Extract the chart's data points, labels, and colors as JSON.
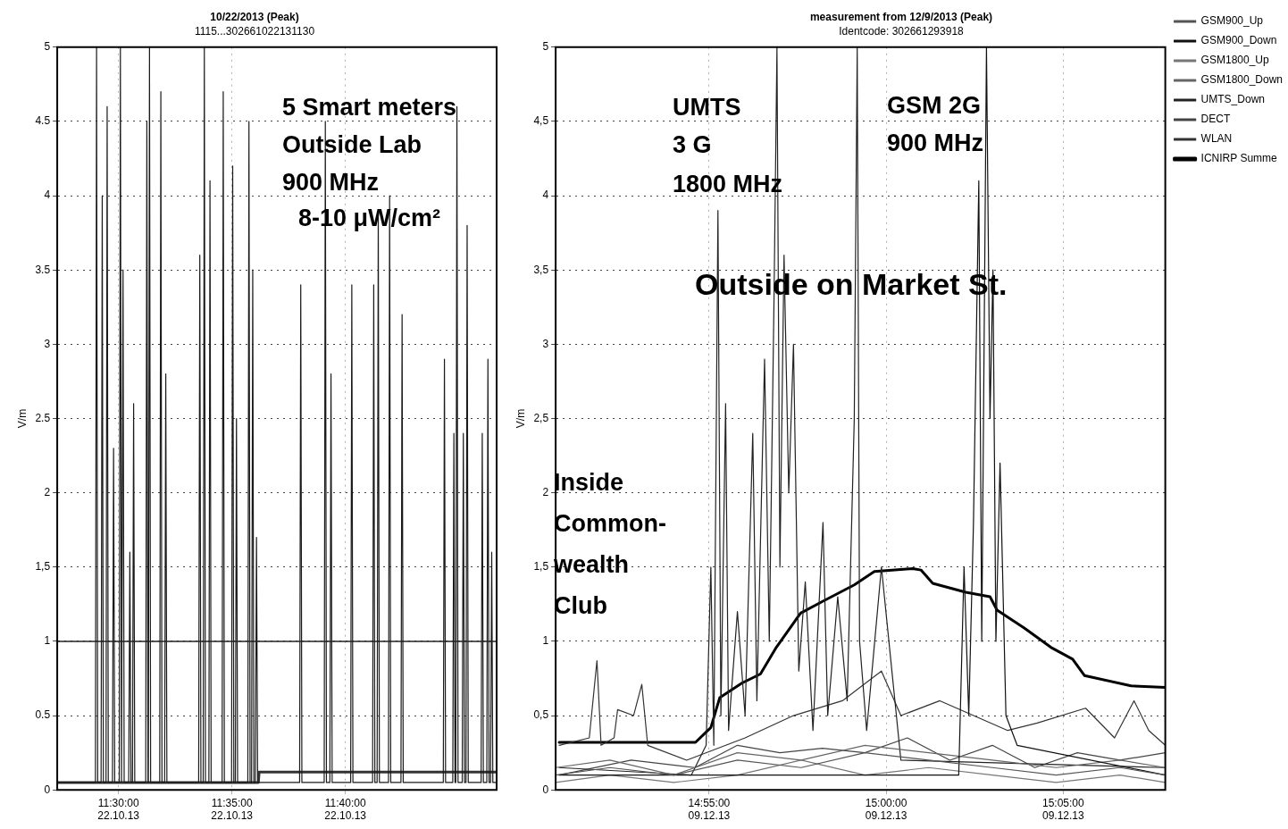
{
  "chart_data": [
    {
      "type": "line",
      "title": "10/22/2013 (Peak)",
      "subtitle": "1115...302661022131130",
      "ylabel": "V/m",
      "marker": "none",
      "grid": true,
      "xlim": [
        "2013-10-22T11:27:18",
        "2013-10-22T11:46:40"
      ],
      "xticks": [
        {
          "value": "2013-10-22T11:30:00",
          "label": "11:30:00 22.10.13"
        },
        {
          "value": "2013-10-22T11:35:00",
          "label": "11:35:00 22.10.13"
        },
        {
          "value": "2013-10-22T11:40:00",
          "label": "11:40:00 22.10.13"
        }
      ],
      "ylim": [
        0,
        5
      ],
      "yticks": [
        0,
        0.5,
        1,
        {
          "value": 1.5,
          "label": "1,5"
        },
        2,
        2.5,
        3,
        3.5,
        4,
        4.5,
        5
      ],
      "ref_lines": [
        {
          "axis": "y",
          "value": 1,
          "color": "#222222"
        }
      ],
      "annotations": [
        "5 Smart meters",
        "Outside Lab",
        "900 MHz",
        "8-10 μW/cm²"
      ],
      "series": [
        {
          "color": "#1a1a1a",
          "x": [
            "2013-10-22T11:27:18",
            "2013-10-22T11:28:59",
            "2013-10-22T11:29:02",
            "2013-10-22T11:29:05",
            "2013-10-22T11:29:14",
            "2013-10-22T11:29:17",
            "2013-10-22T11:29:20",
            "2013-10-22T11:29:27",
            "2013-10-22T11:29:30",
            "2013-10-22T11:29:33",
            "2013-10-22T11:29:44",
            "2013-10-22T11:29:47",
            "2013-10-22T11:29:50",
            "2013-10-22T11:30:02",
            "2013-10-22T11:30:05",
            "2013-10-22T11:30:08",
            "2013-10-22T11:30:09",
            "2013-10-22T11:30:12",
            "2013-10-22T11:30:15",
            "2013-10-22T11:30:27",
            "2013-10-22T11:30:30",
            "2013-10-22T11:30:33",
            "2013-10-22T11:30:37",
            "2013-10-22T11:30:40",
            "2013-10-22T11:30:43",
            "2013-10-22T11:31:12",
            "2013-10-22T11:31:15",
            "2013-10-22T11:31:18",
            "2013-10-22T11:31:19",
            "2013-10-22T11:31:22",
            "2013-10-22T11:31:25",
            "2013-10-22T11:31:49",
            "2013-10-22T11:31:52",
            "2013-10-22T11:31:55",
            "2013-10-22T11:32:02",
            "2013-10-22T11:32:05",
            "2013-10-22T11:32:08",
            "2013-10-22T11:33:32",
            "2013-10-22T11:33:35",
            "2013-10-22T11:33:38",
            "2013-10-22T11:33:44",
            "2013-10-22T11:33:47",
            "2013-10-22T11:33:50",
            "2013-10-22T11:33:59",
            "2013-10-22T11:34:02",
            "2013-10-22T11:34:05",
            "2013-10-22T11:34:34",
            "2013-10-22T11:34:37",
            "2013-10-22T11:34:40",
            "2013-10-22T11:34:59",
            "2013-10-22T11:35:02",
            "2013-10-22T11:35:05",
            "2013-10-22T11:35:09",
            "2013-10-22T11:35:12",
            "2013-10-22T11:35:15",
            "2013-10-22T11:35:42",
            "2013-10-22T11:35:45",
            "2013-10-22T11:35:48",
            "2013-10-22T11:35:52",
            "2013-10-22T11:35:55",
            "2013-10-22T11:35:58",
            "2013-10-22T11:36:02",
            "2013-10-22T11:36:05",
            "2013-10-22T11:36:08",
            "2013-10-22T11:37:59",
            "2013-10-22T11:38:02",
            "2013-10-22T11:38:05",
            "2013-10-22T11:39:04",
            "2013-10-22T11:39:07",
            "2013-10-22T11:39:10",
            "2013-10-22T11:39:19",
            "2013-10-22T11:39:22",
            "2013-10-22T11:39:25",
            "2013-10-22T11:40:14",
            "2013-10-22T11:40:17",
            "2013-10-22T11:40:20",
            "2013-10-22T11:41:12",
            "2013-10-22T11:41:15",
            "2013-10-22T11:41:18",
            "2013-10-22T11:41:24",
            "2013-10-22T11:41:27",
            "2013-10-22T11:41:30",
            "2013-10-22T11:41:54",
            "2013-10-22T11:41:57",
            "2013-10-22T11:42:00",
            "2013-10-22T11:42:27",
            "2013-10-22T11:42:30",
            "2013-10-22T11:42:33",
            "2013-10-22T11:44:19",
            "2013-10-22T11:44:22",
            "2013-10-22T11:44:25",
            "2013-10-22T11:44:44",
            "2013-10-22T11:44:47",
            "2013-10-22T11:44:50",
            "2013-10-22T11:44:52",
            "2013-10-22T11:44:55",
            "2013-10-22T11:44:58",
            "2013-10-22T11:45:09",
            "2013-10-22T11:45:12",
            "2013-10-22T11:45:15",
            "2013-10-22T11:45:19",
            "2013-10-22T11:45:22",
            "2013-10-22T11:45:25",
            "2013-10-22T11:45:59",
            "2013-10-22T11:46:02",
            "2013-10-22T11:46:05",
            "2013-10-22T11:46:14",
            "2013-10-22T11:46:17",
            "2013-10-22T11:46:20",
            "2013-10-22T11:46:24",
            "2013-10-22T11:46:27",
            "2013-10-22T11:46:30",
            "2013-10-22T11:46:40"
          ],
          "values": [
            0.05,
            0.05,
            5,
            0.05,
            0.05,
            4.0,
            0.05,
            0.05,
            4.6,
            0.05,
            0.05,
            2.3,
            0.05,
            0.05,
            5,
            0.05,
            0.05,
            3.5,
            0.05,
            0.05,
            1.6,
            0.05,
            0.05,
            2.6,
            0.05,
            0.05,
            4.5,
            0.05,
            0.05,
            5,
            0.05,
            0.05,
            4.7,
            0.05,
            0.05,
            2.8,
            0.05,
            0.05,
            3.6,
            0.05,
            0.05,
            5,
            0.05,
            0.05,
            4.1,
            0.05,
            0.05,
            4.7,
            0.05,
            0.05,
            4.2,
            0.05,
            0.05,
            2.5,
            0.05,
            0.05,
            4.5,
            0.05,
            0.05,
            3.5,
            0.05,
            0.05,
            1.7,
            0.05,
            0.05,
            3.4,
            0.05,
            0.05,
            4.5,
            0.05,
            0.05,
            2.8,
            0.05,
            0.05,
            3.4,
            0.05,
            0.05,
            3.4,
            0.05,
            0.05,
            3.9,
            0.05,
            0.05,
            4.0,
            0.05,
            0.05,
            3.2,
            0.05,
            0.05,
            2.9,
            0.05,
            0.05,
            2.4,
            0.05,
            0.05,
            4.6,
            0.05,
            0.05,
            2.4,
            0.05,
            0.05,
            3.8,
            0.05,
            0.05,
            2.4,
            0.05,
            0.05,
            2.9,
            0.05,
            0.05,
            1.6,
            0.05,
            0.05
          ]
        },
        {
          "color": "#333333",
          "x": [
            "2013-10-22T11:27:18",
            "2013-10-22T11:36:10",
            "2013-10-22T11:36:12",
            "2013-10-22T11:46:40"
          ],
          "values": [
            0.05,
            0.05,
            0.12,
            0.12
          ]
        }
      ]
    },
    {
      "type": "line",
      "title": "measurement from 12/9/2013 (Peak)",
      "subtitle": "Identcode: 302661293918",
      "ylabel": "V/m",
      "marker": "none",
      "grid": true,
      "legend": "right",
      "xlim": [
        "2013-12-09T14:50:40",
        "2013-12-09T15:07:53"
      ],
      "xticks": [
        {
          "value": "2013-12-09T14:55:00",
          "label": "14:55:00 09.12.13"
        },
        {
          "value": "2013-12-09T15:00:00",
          "label": "15:00:00 09.12.13"
        },
        {
          "value": "2013-12-09T15:05:00",
          "label": "15:05:00 09.12.13"
        }
      ],
      "ylim": [
        0,
        5
      ],
      "yticks": [
        0,
        {
          "value": 0.5,
          "label": "0,5"
        },
        1,
        {
          "value": 1.5,
          "label": "1,5"
        },
        2,
        {
          "value": 2.5,
          "label": "2,5"
        },
        3,
        {
          "value": 3.5,
          "label": "3,5"
        },
        4,
        {
          "value": 4.5,
          "label": "4,5"
        },
        5
      ],
      "annotations": [
        "UMTS",
        "3 G",
        "1800 MHz",
        "GSM 2G",
        "900 MHz",
        "Outside on Market St.",
        "Inside",
        "Common-",
        "wealth",
        "Club"
      ],
      "series": [
        {
          "name": "GSM900_Up",
          "color": "#555555",
          "x": [
            "2013-12-09T14:50:40",
            "2013-12-09T14:52:12",
            "2013-12-09T14:54:00",
            "2013-12-09T14:55:48",
            "2013-12-09T14:57:36",
            "2013-12-09T14:59:24",
            "2013-12-09T15:01:12",
            "2013-12-09T15:03:00",
            "2013-12-09T15:04:48",
            "2013-12-09T15:06:36",
            "2013-12-09T15:07:53"
          ],
          "values": [
            0.1,
            0.15,
            0.1,
            0.2,
            0.15,
            0.25,
            0.2,
            0.15,
            0.1,
            0.15,
            0.1
          ]
        },
        {
          "name": "GSM900_Down",
          "color": "#111111",
          "x": [
            "2013-12-09T14:50:46",
            "2013-12-09T15:02:03",
            "2013-12-09T15:02:12",
            "2013-12-09T15:02:20",
            "2013-12-09T15:02:28",
            "2013-12-09T15:02:37",
            "2013-12-09T15:02:42",
            "2013-12-09T15:02:50",
            "2013-12-09T15:02:56",
            "2013-12-09T15:03:01",
            "2013-12-09T15:03:06",
            "2013-12-09T15:03:13",
            "2013-12-09T15:03:23",
            "2013-12-09T15:03:42",
            "2013-12-09T15:07:53"
          ],
          "values": [
            0.1,
            0.1,
            1.5,
            0.5,
            1.8,
            4.1,
            1.0,
            5,
            2.5,
            3.5,
            1.0,
            2.2,
            0.5,
            0.3,
            0.1
          ]
        },
        {
          "name": "GSM1800_Up",
          "color": "#777777",
          "x": [
            "2013-12-09T14:50:40",
            "2013-12-09T14:52:12",
            "2013-12-09T14:54:00",
            "2013-12-09T14:55:48",
            "2013-12-09T14:57:36",
            "2013-12-09T14:59:24",
            "2013-12-09T15:01:12",
            "2013-12-09T15:03:00",
            "2013-12-09T15:04:48",
            "2013-12-09T15:06:36",
            "2013-12-09T15:07:53"
          ],
          "values": [
            0.05,
            0.1,
            0.05,
            0.1,
            0.2,
            0.1,
            0.15,
            0.1,
            0.05,
            0.1,
            0.05
          ]
        },
        {
          "name": "GSM1800_Down",
          "color": "#666666",
          "x": [
            "2013-12-09T14:50:40",
            "2013-12-09T14:52:12",
            "2013-12-09T14:54:00",
            "2013-12-09T14:55:48",
            "2013-12-09T14:57:36",
            "2013-12-09T14:59:24",
            "2013-12-09T15:01:12",
            "2013-12-09T15:03:00",
            "2013-12-09T15:04:48",
            "2013-12-09T15:06:36",
            "2013-12-09T15:07:53"
          ],
          "values": [
            0.15,
            0.2,
            0.1,
            0.25,
            0.2,
            0.3,
            0.25,
            0.2,
            0.15,
            0.2,
            0.15
          ]
        },
        {
          "name": "UMTS_Down",
          "color": "#222222",
          "x": [
            "2013-12-09T14:50:46",
            "2013-12-09T14:54:30",
            "2013-12-09T14:54:55",
            "2013-12-09T14:55:03",
            "2013-12-09T14:55:08",
            "2013-12-09T14:55:15",
            "2013-12-09T14:55:20",
            "2013-12-09T14:55:28",
            "2013-12-09T14:55:33",
            "2013-12-09T14:55:48",
            "2013-12-09T14:56:01",
            "2013-12-09T14:56:14",
            "2013-12-09T14:56:21",
            "2013-12-09T14:56:34",
            "2013-12-09T14:56:42",
            "2013-12-09T14:56:50",
            "2013-12-09T14:56:55",
            "2013-12-09T14:57:00",
            "2013-12-09T14:57:07",
            "2013-12-09T14:57:15",
            "2013-12-09T14:57:23",
            "2013-12-09T14:57:32",
            "2013-12-09T14:57:43",
            "2013-12-09T14:57:56",
            "2013-12-09T14:58:13",
            "2013-12-09T14:58:21",
            "2013-12-09T14:58:38",
            "2013-12-09T14:58:54",
            "2013-12-09T14:59:06",
            "2013-12-09T14:59:11",
            "2013-12-09T14:59:15",
            "2013-12-09T14:59:27",
            "2013-12-09T14:59:52",
            "2013-12-09T15:00:25",
            "2013-12-09T15:07:53"
          ],
          "values": [
            0.15,
            0.1,
            0.3,
            1.5,
            0.3,
            3.9,
            0.5,
            2.6,
            0.4,
            1.2,
            0.5,
            2.4,
            0.6,
            2.9,
            1.0,
            3.3,
            5,
            1.5,
            3.6,
            2.0,
            3.0,
            0.8,
            1.4,
            0.4,
            1.8,
            0.5,
            1.3,
            0.6,
            2.5,
            5,
            1.0,
            0.4,
            1.5,
            0.2,
            0.15
          ]
        },
        {
          "name": "DECT",
          "color": "#444444",
          "x": [
            "2013-12-09T14:50:46",
            "2013-12-09T14:52:48",
            "2013-12-09T14:54:36",
            "2013-12-09T14:55:48",
            "2013-12-09T14:57:00",
            "2013-12-09T14:58:12",
            "2013-12-09T14:59:24",
            "2013-12-09T15:00:36",
            "2013-12-09T15:01:48",
            "2013-12-09T15:03:00",
            "2013-12-09T15:04:12",
            "2013-12-09T15:05:24",
            "2013-12-09T15:06:36",
            "2013-12-09T15:07:53"
          ],
          "values": [
            0.1,
            0.2,
            0.15,
            0.3,
            0.25,
            0.28,
            0.25,
            0.35,
            0.2,
            0.3,
            0.15,
            0.25,
            0.2,
            0.25
          ]
        },
        {
          "name": "WLAN",
          "color": "#333333",
          "x": [
            "2013-12-09T14:50:46",
            "2013-12-09T14:51:37",
            "2013-12-09T14:51:50",
            "2013-12-09T14:51:57",
            "2013-12-09T14:52:19",
            "2013-12-09T14:52:25",
            "2013-12-09T14:52:52",
            "2013-12-09T14:53:06",
            "2013-12-09T14:53:16",
            "2013-12-09T14:54:22",
            "2013-12-09T14:56:01",
            "2013-12-09T14:57:23",
            "2013-12-09T14:58:46",
            "2013-12-09T14:59:52",
            "2013-12-09T15:00:25",
            "2013-12-09T15:01:31",
            "2013-12-09T15:03:26",
            "2013-12-09T15:04:16",
            "2013-12-09T15:05:38",
            "2013-12-09T15:06:27",
            "2013-12-09T15:07:00",
            "2013-12-09T15:07:25",
            "2013-12-09T15:07:53"
          ],
          "values": [
            0.3,
            0.35,
            0.87,
            0.3,
            0.35,
            0.54,
            0.5,
            0.71,
            0.3,
            0.2,
            0.35,
            0.5,
            0.6,
            0.8,
            0.5,
            0.6,
            0.4,
            0.45,
            0.55,
            0.35,
            0.6,
            0.4,
            0.3
          ]
        },
        {
          "name": "ICNIRP Summe",
          "color": "#000000",
          "x": [
            "2013-12-09T14:50:46",
            "2013-12-09T14:54:37",
            "2013-12-09T14:55:03",
            "2013-12-09T14:55:18",
            "2013-12-09T14:55:56",
            "2013-12-09T14:56:27",
            "2013-12-09T14:56:54",
            "2013-12-09T14:57:35",
            "2013-12-09T14:58:13",
            "2013-12-09T14:59:06",
            "2013-12-09T14:59:40",
            "2013-12-09T15:00:45",
            "2013-12-09T15:00:59",
            "2013-12-09T15:01:19",
            "2013-12-09T15:02:15",
            "2013-12-09T15:02:56",
            "2013-12-09T15:03:08",
            "2013-12-09T15:03:54",
            "2013-12-09T15:04:39",
            "2013-12-09T15:05:16",
            "2013-12-09T15:05:36",
            "2013-12-09T15:06:55",
            "2013-12-09T15:07:53"
          ],
          "values": [
            0.32,
            0.32,
            0.42,
            0.62,
            0.72,
            0.78,
            0.96,
            1.19,
            1.27,
            1.38,
            1.47,
            1.49,
            1.48,
            1.39,
            1.33,
            1.3,
            1.21,
            1.09,
            0.96,
            0.88,
            0.77,
            0.7,
            0.69
          ]
        }
      ]
    }
  ]
}
